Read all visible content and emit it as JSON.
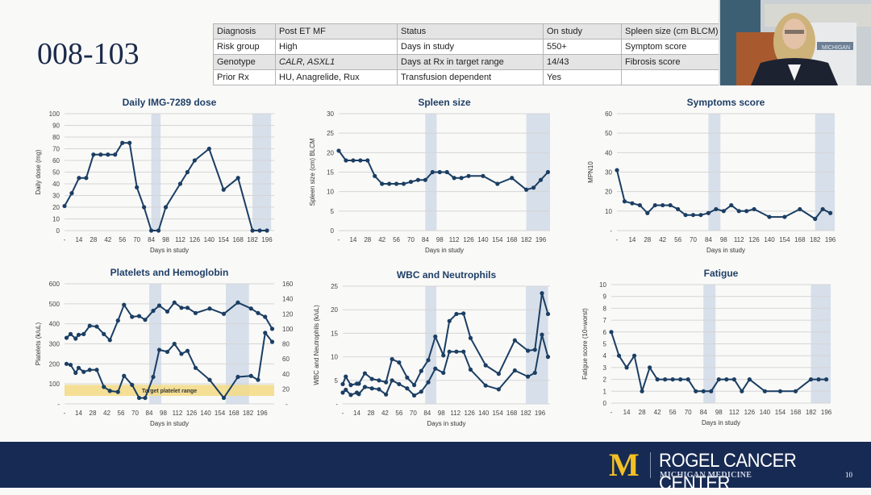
{
  "slide": {
    "title": "008-103",
    "page_number": "10"
  },
  "info_table": [
    [
      {
        "t": "Diagnosis"
      },
      {
        "t": "Post ET MF"
      },
      {
        "t": "Status"
      },
      {
        "t": "On study"
      },
      {
        "t": "Spleen size (cm BLCM)"
      }
    ],
    [
      {
        "t": "Risk group"
      },
      {
        "t": "High"
      },
      {
        "t": "Days in study"
      },
      {
        "t": "550+"
      },
      {
        "t": "Symptom score"
      }
    ],
    [
      {
        "t": "Genotype"
      },
      {
        "t": "CALR, ASXL1",
        "italic": true
      },
      {
        "t": "Days at Rx in target range"
      },
      {
        "t": "14/43"
      },
      {
        "t": "Fibrosis score"
      }
    ],
    [
      {
        "t": "Prior Rx"
      },
      {
        "t": "HU, Anagrelide, Rux"
      },
      {
        "t": "Transfusion dependent"
      },
      {
        "t": "Yes"
      },
      {
        "t": ""
      }
    ]
  ],
  "webcam": {
    "label": "presenter video",
    "banner_text": "MICHIGAN"
  },
  "footer": {
    "logo_letter": "M",
    "org_name": "ROGEL CANCER CENTER",
    "org_sub": "MICHIGAN MEDICINE"
  },
  "colors": {
    "line": "#1b3e63",
    "title": "#1f3f66",
    "shade": "#d7dfea",
    "target": "#f3dc8a",
    "footer_bg": "#172a53",
    "logo_gold": "#f2c024"
  },
  "chart_data": [
    {
      "id": "dose",
      "type": "line",
      "title": "Daily IMG-7289 dose",
      "xlabel": "Days in study",
      "ylabel": "Daily dose (mg)",
      "xlim": [
        0,
        203
      ],
      "ylim": [
        0,
        100
      ],
      "yticks": [
        0,
        10,
        20,
        30,
        40,
        50,
        60,
        70,
        80,
        90,
        100
      ],
      "xtick_labels": [
        "-",
        "14",
        "28",
        "42",
        "56",
        "70",
        "84",
        "98",
        "112",
        "126",
        "140",
        "154",
        "168",
        "182",
        "196"
      ],
      "shaded_ranges": [
        [
          84,
          93
        ],
        [
          182,
          200
        ]
      ],
      "series": [
        {
          "name": "Daily dose",
          "x": [
            0,
            7,
            14,
            21,
            28,
            35,
            42,
            49,
            56,
            63,
            70,
            77,
            84,
            91,
            98,
            112,
            119,
            126,
            140,
            154,
            168,
            182,
            189,
            196
          ],
          "values": [
            21,
            32,
            45,
            45,
            65,
            65,
            65,
            65,
            75,
            75,
            37,
            20,
            0,
            0,
            20,
            40,
            50,
            60,
            70,
            35,
            45,
            0,
            0,
            0
          ]
        }
      ]
    },
    {
      "id": "spleen",
      "type": "line",
      "title": "Spleen size",
      "xlabel": "Days in study",
      "ylabel": "Spleen size (cm) BLCM",
      "xlim": [
        0,
        205
      ],
      "ylim": [
        0,
        30
      ],
      "yticks": [
        0,
        5,
        10,
        15,
        20,
        25,
        30
      ],
      "xtick_labels": [
        "-",
        "14",
        "28",
        "42",
        "56",
        "70",
        "84",
        "98",
        "112",
        "126",
        "140",
        "154",
        "168",
        "182",
        "196"
      ],
      "shaded_ranges": [
        [
          84,
          95
        ],
        [
          182,
          205
        ]
      ],
      "series": [
        {
          "name": "Spleen size",
          "x": [
            0,
            7,
            14,
            21,
            28,
            35,
            42,
            49,
            56,
            63,
            70,
            77,
            84,
            91,
            98,
            105,
            112,
            119,
            126,
            140,
            154,
            168,
            182,
            189,
            196,
            203
          ],
          "values": [
            20.5,
            18,
            18,
            18,
            18,
            14,
            12,
            12,
            12,
            12,
            12.5,
            13,
            13,
            15,
            15,
            15,
            13.5,
            13.5,
            14,
            14,
            12,
            13.5,
            10.5,
            11,
            13,
            15
          ]
        }
      ]
    },
    {
      "id": "symptoms",
      "type": "line",
      "title": "Symptoms score",
      "xlabel": "Days in study",
      "ylabel": "MPN10",
      "xlim": [
        0,
        200
      ],
      "ylim": [
        0,
        60
      ],
      "yticks": [
        10,
        20,
        30,
        40,
        50,
        60
      ],
      "ytick_zero_label": "-",
      "xtick_labels": [
        "-",
        "14",
        "28",
        "42",
        "56",
        "70",
        "84",
        "98",
        "112",
        "126",
        "140",
        "154",
        "168",
        "182",
        "196"
      ],
      "shaded_ranges": [
        [
          84,
          95
        ],
        [
          182,
          200
        ]
      ],
      "series": [
        {
          "name": "MPN10",
          "x": [
            0,
            7,
            14,
            21,
            28,
            35,
            42,
            49,
            56,
            63,
            70,
            77,
            84,
            91,
            98,
            105,
            112,
            119,
            126,
            140,
            154,
            168,
            182,
            189,
            196
          ],
          "values": [
            31,
            15,
            14,
            13,
            9,
            13,
            13,
            13,
            11,
            8,
            8,
            8,
            9,
            11,
            10,
            13,
            10,
            10,
            11,
            7,
            7,
            11,
            6,
            11,
            9
          ]
        }
      ]
    },
    {
      "id": "platelets",
      "type": "line",
      "title": "Platelets and Hemoglobin",
      "xlabel": "Days in study",
      "ylabel": "Platelets (k/uL)",
      "xlim": [
        0,
        208
      ],
      "ylim": [
        0,
        600
      ],
      "yticks": [
        100,
        200,
        300,
        400,
        500,
        600
      ],
      "ytick_zero_label": "-",
      "y2lim": [
        0,
        160
      ],
      "y2ticks": [
        20,
        40,
        60,
        80,
        100,
        120,
        140,
        160
      ],
      "y2tick_zero_label": "-",
      "xtick_labels": [
        "-",
        "14",
        "28",
        "42",
        "56",
        "70",
        "84",
        "98",
        "112",
        "126",
        "140",
        "154",
        "168",
        "182",
        "196"
      ],
      "shaded_ranges": [
        [
          84,
          96
        ],
        [
          160,
          183
        ]
      ],
      "target_band": {
        "label": "Target platelet range",
        "range": [
          40,
          95
        ]
      },
      "series": [
        {
          "name": "Hemoglobin",
          "axis": "right",
          "x": [
            2,
            6,
            11,
            14,
            19,
            25,
            32,
            39,
            45,
            53,
            59,
            67,
            74,
            80,
            88,
            94,
            102,
            109,
            116,
            122,
            130,
            144,
            158,
            172,
            185,
            192,
            199,
            206
          ],
          "values": [
            88,
            93,
            87,
            92,
            93,
            104,
            103,
            93,
            85,
            111,
            132,
            116,
            117,
            112,
            124,
            131,
            123,
            135,
            128,
            128,
            121,
            127,
            120,
            135,
            127,
            121,
            116,
            100
          ]
        },
        {
          "name": "Platelets",
          "axis": "left",
          "x": [
            2,
            6,
            11,
            14,
            19,
            25,
            32,
            39,
            45,
            53,
            59,
            67,
            74,
            80,
            88,
            94,
            102,
            109,
            116,
            122,
            130,
            144,
            158,
            172,
            185,
            192,
            199,
            206
          ],
          "values": [
            200,
            195,
            155,
            180,
            160,
            170,
            170,
            85,
            65,
            60,
            140,
            95,
            30,
            30,
            135,
            270,
            260,
            300,
            250,
            265,
            180,
            120,
            30,
            135,
            140,
            120,
            355,
            310
          ]
        }
      ]
    },
    {
      "id": "wbc",
      "type": "line",
      "title": "WBC and Neutrophils",
      "xlabel": "Days in study",
      "ylabel": "WBC and Neutrophils (k/uL)",
      "xlim": [
        0,
        206
      ],
      "ylim": [
        0,
        25
      ],
      "yticks": [
        5,
        10,
        15,
        20,
        25
      ],
      "ytick_zero_label": "-",
      "xtick_labels": [
        "-",
        "14",
        "28",
        "42",
        "56",
        "70",
        "84",
        "98",
        "112",
        "126",
        "140",
        "154",
        "168",
        "182",
        "196"
      ],
      "shaded_ranges": [
        [
          82,
          93
        ],
        [
          182,
          204
        ]
      ],
      "series": [
        {
          "name": "WBC",
          "x": [
            0,
            3,
            8,
            14,
            16,
            22,
            29,
            36,
            43,
            49,
            56,
            64,
            71,
            78,
            85,
            92,
            100,
            106,
            113,
            120,
            127,
            142,
            155,
            171,
            184,
            191,
            198,
            204
          ],
          "values": [
            4.2,
            5.8,
            4.0,
            4.3,
            4.3,
            6.5,
            5.3,
            5.0,
            4.6,
            9.5,
            8.8,
            5.6,
            4.0,
            7.0,
            9.3,
            14.3,
            10.3,
            17.6,
            19.1,
            19.2,
            14.0,
            8.2,
            6.4,
            13.5,
            11.3,
            11.5,
            23.5,
            19.1
          ]
        },
        {
          "name": "Neutrophils",
          "x": [
            0,
            3,
            8,
            14,
            16,
            22,
            29,
            36,
            43,
            49,
            56,
            64,
            71,
            78,
            85,
            92,
            100,
            106,
            113,
            120,
            127,
            142,
            155,
            171,
            184,
            191,
            198,
            204
          ],
          "values": [
            2.4,
            3.0,
            1.9,
            2.4,
            2.1,
            3.6,
            3.3,
            3.1,
            2.0,
            5.0,
            4.2,
            3.3,
            1.8,
            2.6,
            4.6,
            7.5,
            6.6,
            11.1,
            11.1,
            11.1,
            7.3,
            3.9,
            3.1,
            7.1,
            5.8,
            6.6,
            14.7,
            10.0
          ]
        }
      ]
    },
    {
      "id": "fatigue",
      "type": "line",
      "title": "Fatigue",
      "xlabel": "Days in study",
      "ylabel": "Fatigue score (10=worst)",
      "xlim": [
        0,
        200
      ],
      "ylim": [
        0,
        10
      ],
      "yticks": [
        0,
        1,
        2,
        3,
        4,
        5,
        6,
        7,
        8,
        9,
        10
      ],
      "xtick_labels": [
        "-",
        "14",
        "28",
        "42",
        "56",
        "70",
        "84",
        "98",
        "112",
        "126",
        "140",
        "154",
        "168",
        "182",
        "196"
      ],
      "shaded_ranges": [
        [
          84,
          95
        ],
        [
          182,
          200
        ]
      ],
      "series": [
        {
          "name": "Fatigue score",
          "x": [
            0,
            7,
            14,
            21,
            28,
            35,
            42,
            49,
            56,
            63,
            70,
            77,
            84,
            91,
            98,
            105,
            112,
            119,
            126,
            140,
            154,
            168,
            182,
            189,
            196
          ],
          "values": [
            6,
            4,
            3,
            4,
            1,
            3,
            2,
            2,
            2,
            2,
            2,
            1,
            1,
            1,
            2,
            2,
            2,
            1,
            2,
            1,
            1,
            1,
            2,
            2,
            2
          ]
        }
      ]
    }
  ]
}
